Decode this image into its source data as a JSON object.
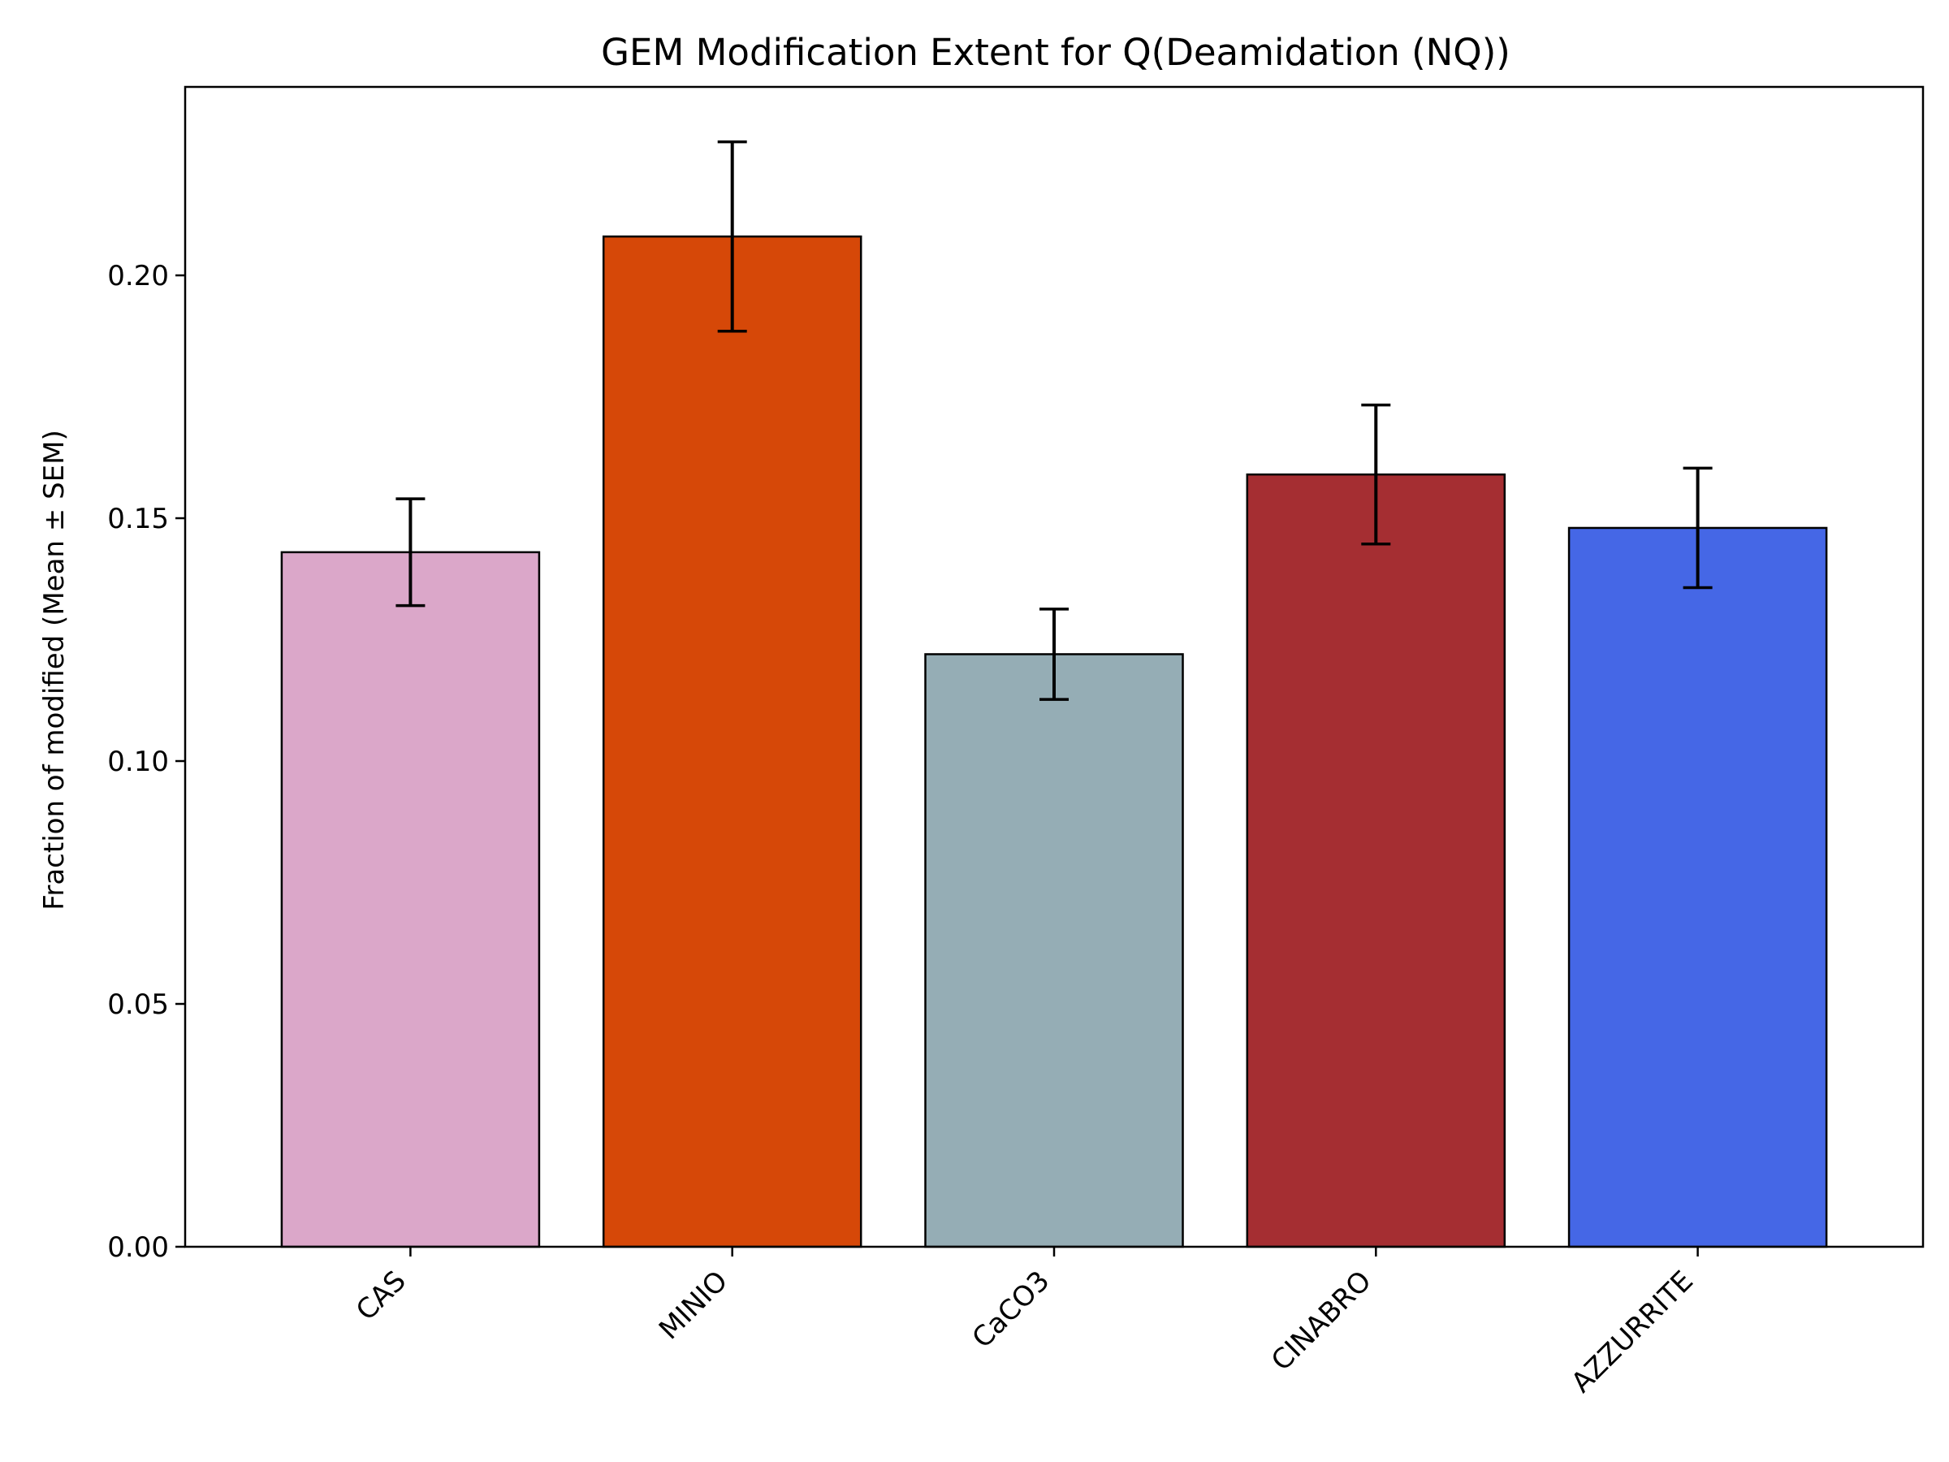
{
  "chart_data": {
    "type": "bar",
    "title": "GEM Modification Extent for Q(Deamidation (NQ))",
    "xlabel": "",
    "ylabel": "Fraction of modified (Mean ± SEM)",
    "categories": [
      "CAS",
      "MINIO",
      "CaCO3",
      "CINABRO",
      "AZZURRITE"
    ],
    "values": [
      0.143,
      0.208,
      0.122,
      0.159,
      0.148
    ],
    "errors": [
      0.011,
      0.0195,
      0.0093,
      0.0143,
      0.0123
    ],
    "colors": [
      "#dba7c9",
      "#d64808",
      "#95adb5",
      "#a52e32",
      "#4567e6"
    ],
    "ylim": [
      0,
      0.2388
    ],
    "yticks": [
      0.0,
      0.05,
      0.1,
      0.15,
      0.2
    ],
    "ytick_labels": [
      "0.00",
      "0.05",
      "0.10",
      "0.15",
      "0.20"
    ],
    "grid": false,
    "legend": "none"
  }
}
